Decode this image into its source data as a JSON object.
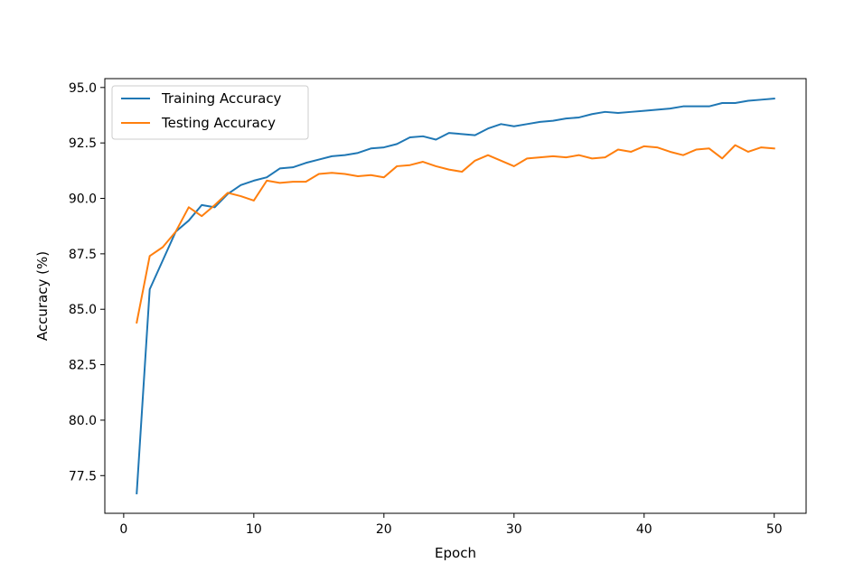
{
  "chart_data": {
    "type": "line",
    "title": "",
    "xlabel": "Epoch",
    "ylabel": "Accuracy (%)",
    "xlim": [
      -1.45,
      52.45
    ],
    "ylim": [
      75.8,
      95.4
    ],
    "xticks": [
      0,
      10,
      20,
      30,
      40,
      50
    ],
    "yticks": [
      77.5,
      80.0,
      82.5,
      85.0,
      87.5,
      90.0,
      92.5,
      95.0
    ],
    "grid": false,
    "legend_position": "upper-left",
    "x": [
      1,
      2,
      3,
      4,
      5,
      6,
      7,
      8,
      9,
      10,
      11,
      12,
      13,
      14,
      15,
      16,
      17,
      18,
      19,
      20,
      21,
      22,
      23,
      24,
      25,
      26,
      27,
      28,
      29,
      30,
      31,
      32,
      33,
      34,
      35,
      36,
      37,
      38,
      39,
      40,
      41,
      42,
      43,
      44,
      45,
      46,
      47,
      48,
      49,
      50
    ],
    "series": [
      {
        "name": "Training Accuracy",
        "color": "#1f77b4",
        "values": [
          76.7,
          85.9,
          87.2,
          88.5,
          89.0,
          89.7,
          89.6,
          90.2,
          90.6,
          90.8,
          90.95,
          91.35,
          91.4,
          91.6,
          91.75,
          91.9,
          91.95,
          92.05,
          92.25,
          92.3,
          92.45,
          92.75,
          92.8,
          92.65,
          92.95,
          92.9,
          92.85,
          93.15,
          93.35,
          93.25,
          93.35,
          93.45,
          93.5,
          93.6,
          93.65,
          93.8,
          93.9,
          93.85,
          93.9,
          93.95,
          94.0,
          94.05,
          94.15,
          94.15,
          94.15,
          94.3,
          94.3,
          94.4,
          94.45,
          94.5
        ]
      },
      {
        "name": "Testing Accuracy",
        "color": "#ff7f0e",
        "values": [
          84.4,
          87.4,
          87.8,
          88.5,
          89.6,
          89.2,
          89.7,
          90.25,
          90.1,
          89.9,
          90.8,
          90.7,
          90.75,
          90.75,
          91.1,
          91.15,
          91.1,
          91.0,
          91.05,
          90.95,
          91.45,
          91.5,
          91.65,
          91.45,
          91.3,
          91.2,
          91.7,
          91.95,
          91.7,
          91.45,
          91.8,
          91.85,
          91.9,
          91.85,
          91.95,
          91.8,
          91.85,
          92.2,
          92.1,
          92.35,
          92.3,
          92.1,
          91.95,
          92.2,
          92.25,
          91.8,
          92.4,
          92.1,
          92.3,
          92.25
        ]
      }
    ]
  }
}
